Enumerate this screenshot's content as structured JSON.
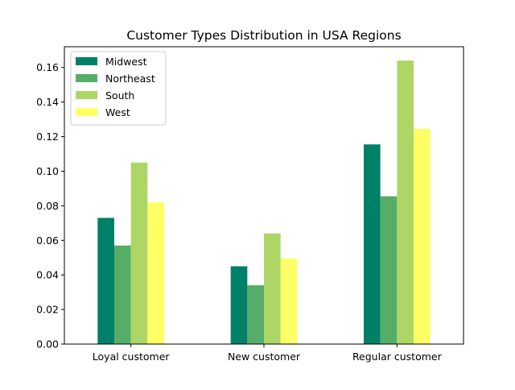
{
  "chart_data": {
    "type": "bar",
    "title": "Customer Types Distribution in USA Regions",
    "xlabel": "",
    "ylabel": "",
    "categories": [
      "Loyal customer",
      "New customer",
      "Regular customer"
    ],
    "series": [
      {
        "name": "Midwest",
        "color": "#008066",
        "values": [
          0.073,
          0.045,
          0.1155
        ]
      },
      {
        "name": "Northeast",
        "color": "#55AD68",
        "values": [
          0.057,
          0.034,
          0.0855
        ]
      },
      {
        "name": "South",
        "color": "#ADD666",
        "values": [
          0.105,
          0.064,
          0.164
        ]
      },
      {
        "name": "West",
        "color": "#FFFF66",
        "values": [
          0.082,
          0.0495,
          0.1245
        ]
      }
    ],
    "ylim": [
      0,
      0.172
    ],
    "yticks": [
      "0.00",
      "0.02",
      "0.04",
      "0.06",
      "0.08",
      "0.10",
      "0.12",
      "0.14",
      "0.16"
    ],
    "grid": false,
    "legend_position": "top-left"
  }
}
